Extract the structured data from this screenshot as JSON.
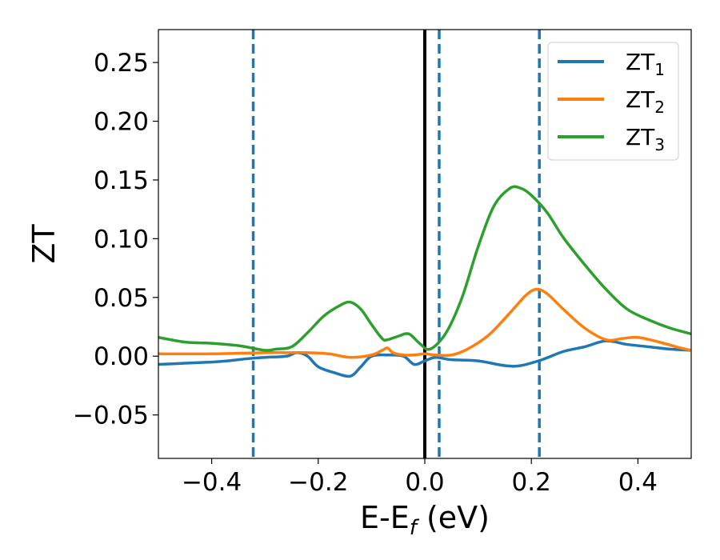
{
  "chart_data": {
    "type": "line",
    "xlabel": {
      "main": "E-E",
      "sub": "f",
      "suffix": " (eV)"
    },
    "ylabel": "ZT",
    "xlim": [
      -0.5,
      0.5
    ],
    "ylim": [
      -0.087,
      0.278
    ],
    "xticks": [
      -0.4,
      -0.2,
      0.0,
      0.2,
      0.4
    ],
    "xtick_labels": [
      "−0.4",
      "−0.2",
      "0.0",
      "0.2",
      "0.4"
    ],
    "yticks": [
      -0.05,
      0.0,
      0.05,
      0.1,
      0.15,
      0.2,
      0.25
    ],
    "ytick_labels": [
      "−0.05",
      "0.00",
      "0.05",
      "0.10",
      "0.15",
      "0.20",
      "0.25"
    ],
    "grid": false,
    "legend_position": "top-right",
    "vlines": [
      {
        "x": 0.0,
        "style": "solid",
        "color": "#000000"
      },
      {
        "x": -0.322,
        "style": "dashed",
        "color": "#1f77b4"
      },
      {
        "x": 0.027,
        "style": "dashed",
        "color": "#1f77b4"
      },
      {
        "x": 0.215,
        "style": "dashed",
        "color": "#1f77b4"
      }
    ],
    "series": [
      {
        "name": "ZT",
        "subscript": "1",
        "color": "#1f77b4",
        "x": [
          -0.5,
          -0.45,
          -0.4,
          -0.37,
          -0.33,
          -0.3,
          -0.26,
          -0.24,
          -0.22,
          -0.2,
          -0.17,
          -0.14,
          -0.12,
          -0.1,
          -0.07,
          -0.04,
          -0.02,
          0.0,
          0.02,
          0.05,
          0.1,
          0.15,
          0.18,
          0.22,
          0.26,
          0.3,
          0.34,
          0.38,
          0.42,
          0.46,
          0.5
        ],
        "y": [
          -0.007,
          -0.006,
          -0.005,
          -0.004,
          -0.002,
          -0.001,
          0.0,
          0.003,
          0.0,
          -0.009,
          -0.014,
          -0.017,
          -0.009,
          0.0,
          0.001,
          0.0,
          -0.007,
          -0.004,
          -0.001,
          -0.003,
          -0.004,
          -0.008,
          -0.008,
          -0.003,
          0.004,
          0.008,
          0.013,
          0.01,
          0.008,
          0.006,
          0.005
        ]
      },
      {
        "name": "ZT",
        "subscript": "2",
        "color": "#ff7f0e",
        "x": [
          -0.5,
          -0.4,
          -0.3,
          -0.26,
          -0.22,
          -0.18,
          -0.14,
          -0.1,
          -0.08,
          -0.07,
          -0.06,
          -0.04,
          -0.02,
          0.0,
          0.02,
          0.05,
          0.08,
          0.12,
          0.16,
          0.19,
          0.21,
          0.23,
          0.26,
          0.3,
          0.34,
          0.37,
          0.4,
          0.44,
          0.48,
          0.5
        ],
        "y": [
          0.002,
          0.002,
          0.003,
          0.003,
          0.003,
          0.002,
          -0.001,
          0.001,
          0.005,
          0.007,
          0.003,
          0.001,
          0.001,
          0.002,
          0.001,
          0.001,
          0.006,
          0.018,
          0.037,
          0.052,
          0.057,
          0.053,
          0.04,
          0.024,
          0.014,
          0.015,
          0.016,
          0.012,
          0.007,
          0.005
        ]
      },
      {
        "name": "ZT",
        "subscript": "3",
        "color": "#2ca02c",
        "x": [
          -0.5,
          -0.45,
          -0.4,
          -0.35,
          -0.3,
          -0.28,
          -0.25,
          -0.22,
          -0.19,
          -0.16,
          -0.14,
          -0.12,
          -0.1,
          -0.08,
          -0.07,
          -0.05,
          -0.03,
          -0.01,
          0.01,
          0.04,
          0.07,
          0.1,
          0.13,
          0.16,
          0.18,
          0.2,
          0.23,
          0.26,
          0.3,
          0.34,
          0.38,
          0.42,
          0.46,
          0.5
        ],
        "y": [
          0.016,
          0.012,
          0.011,
          0.009,
          0.005,
          0.006,
          0.008,
          0.02,
          0.034,
          0.043,
          0.046,
          0.04,
          0.027,
          0.015,
          0.014,
          0.017,
          0.019,
          0.011,
          0.006,
          0.02,
          0.05,
          0.093,
          0.128,
          0.143,
          0.143,
          0.137,
          0.122,
          0.101,
          0.078,
          0.057,
          0.04,
          0.031,
          0.024,
          0.019
        ]
      }
    ]
  }
}
